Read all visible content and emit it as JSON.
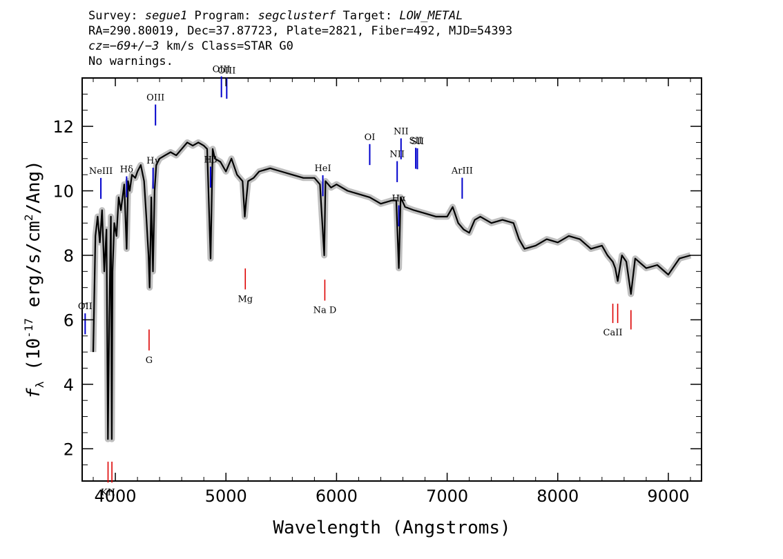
{
  "header": {
    "line1": {
      "survey_label": "Survey: ",
      "survey": "segue1",
      "program_label": " Program: ",
      "program": "segclusterf",
      "target_label": " Target: ",
      "target": "LOW_METAL"
    },
    "line2": "RA=290.80019, Dec=37.87723, Plate=2821, Fiber=492, MJD=54393",
    "line3": {
      "cz": "cz=−69+/−3",
      "rest": " km/s Class=STAR G0"
    },
    "line4": "No warnings."
  },
  "colors": {
    "emission": "#0000cc",
    "absorption": "#dd0000",
    "flux": "#000000",
    "error": "#b4b4b4"
  },
  "chart_data": {
    "type": "line",
    "xlabel": "Wavelength (Angstroms)",
    "ylabel": "f_λ (10^-17 erg/s/cm^2/Ang)",
    "xlim": [
      3700,
      9300
    ],
    "ylim": [
      1.0,
      13.5
    ],
    "x_ticks": [
      4000,
      5000,
      6000,
      7000,
      8000,
      9000
    ],
    "y_ticks": [
      2,
      4,
      6,
      8,
      10,
      12
    ],
    "series": [
      {
        "role": "flux",
        "x": [
          3800,
          3820,
          3840,
          3860,
          3880,
          3900,
          3920,
          3933,
          3945,
          3960,
          3968,
          3975,
          3990,
          4010,
          4030,
          4050,
          4080,
          4102,
          4115,
          4130,
          4150,
          4180,
          4200,
          4230,
          4260,
          4280,
          4300,
          4310,
          4325,
          4340,
          4355,
          4370,
          4400,
          4450,
          4500,
          4550,
          4600,
          4650,
          4700,
          4750,
          4800,
          4830,
          4861,
          4880,
          4900,
          4950,
          5000,
          5050,
          5100,
          5150,
          5170,
          5183,
          5200,
          5250,
          5300,
          5400,
          5500,
          5600,
          5700,
          5800,
          5850,
          5889,
          5900,
          5950,
          6000,
          6100,
          6200,
          6300,
          6400,
          6500,
          6540,
          6563,
          6580,
          6620,
          6700,
          6800,
          6900,
          7000,
          7050,
          7100,
          7150,
          7200,
          7250,
          7300,
          7400,
          7500,
          7600,
          7650,
          7700,
          7800,
          7900,
          8000,
          8100,
          8200,
          8300,
          8400,
          8450,
          8498,
          8520,
          8542,
          8580,
          8620,
          8662,
          8700,
          8800,
          8900,
          9000,
          9100,
          9200
        ],
        "y": [
          5.0,
          8.6,
          9.2,
          8.4,
          9.4,
          7.5,
          8.8,
          2.3,
          6.0,
          9.2,
          2.3,
          7.5,
          9.0,
          8.6,
          9.8,
          9.4,
          10.2,
          8.2,
          10.3,
          10.0,
          10.5,
          10.4,
          10.6,
          10.8,
          10.3,
          9.2,
          8.0,
          7.0,
          9.8,
          7.5,
          10.0,
          10.8,
          11.0,
          11.1,
          11.2,
          11.1,
          11.3,
          11.5,
          11.4,
          11.5,
          11.4,
          11.3,
          7.9,
          11.3,
          11.0,
          10.9,
          10.6,
          11.0,
          10.5,
          10.3,
          9.2,
          9.7,
          10.3,
          10.4,
          10.6,
          10.7,
          10.6,
          10.5,
          10.4,
          10.4,
          10.2,
          8.0,
          10.3,
          10.1,
          10.2,
          10.0,
          9.9,
          9.8,
          9.6,
          9.7,
          9.7,
          7.6,
          9.8,
          9.5,
          9.4,
          9.3,
          9.2,
          9.2,
          9.5,
          9.0,
          8.8,
          8.7,
          9.1,
          9.2,
          9.0,
          9.1,
          9.0,
          8.5,
          8.2,
          8.3,
          8.5,
          8.4,
          8.6,
          8.5,
          8.2,
          8.3,
          8.0,
          7.8,
          7.6,
          7.2,
          8.0,
          7.8,
          6.8,
          7.9,
          7.6,
          7.7,
          7.4,
          7.9,
          8.0
        ]
      }
    ],
    "emission_lines": [
      {
        "label": "OII",
        "x": 3727
      },
      {
        "label": "NeIII",
        "x": 3869
      },
      {
        "label": "Hδ",
        "x": 4102
      },
      {
        "label": "Hγ",
        "x": 4341
      },
      {
        "label": "OIII",
        "x": 4363
      },
      {
        "label": "Hβ",
        "x": 4861
      },
      {
        "label": "OIII",
        "x": 4959
      },
      {
        "label": "OIII",
        "x": 5007
      },
      {
        "label": "HeI",
        "x": 5876
      },
      {
        "label": "OI",
        "x": 6300
      },
      {
        "label": "NII",
        "x": 6548
      },
      {
        "label": "Hα",
        "x": 6563
      },
      {
        "label": "NII",
        "x": 6583
      },
      {
        "label": "SII",
        "x": 6716
      },
      {
        "label": "SII",
        "x": 6731
      },
      {
        "label": "ArIII",
        "x": 7136
      }
    ],
    "absorption_lines": [
      {
        "label": "KH",
        "x": 3934
      },
      {
        "label": "",
        "x": 3969
      },
      {
        "label": "G",
        "x": 4305
      },
      {
        "label": "Mg",
        "x": 5175
      },
      {
        "label": "Na D",
        "x": 5894
      },
      {
        "label": "CaII",
        "x": 8498
      },
      {
        "label": "",
        "x": 8542
      },
      {
        "label": "",
        "x": 8662
      }
    ]
  }
}
